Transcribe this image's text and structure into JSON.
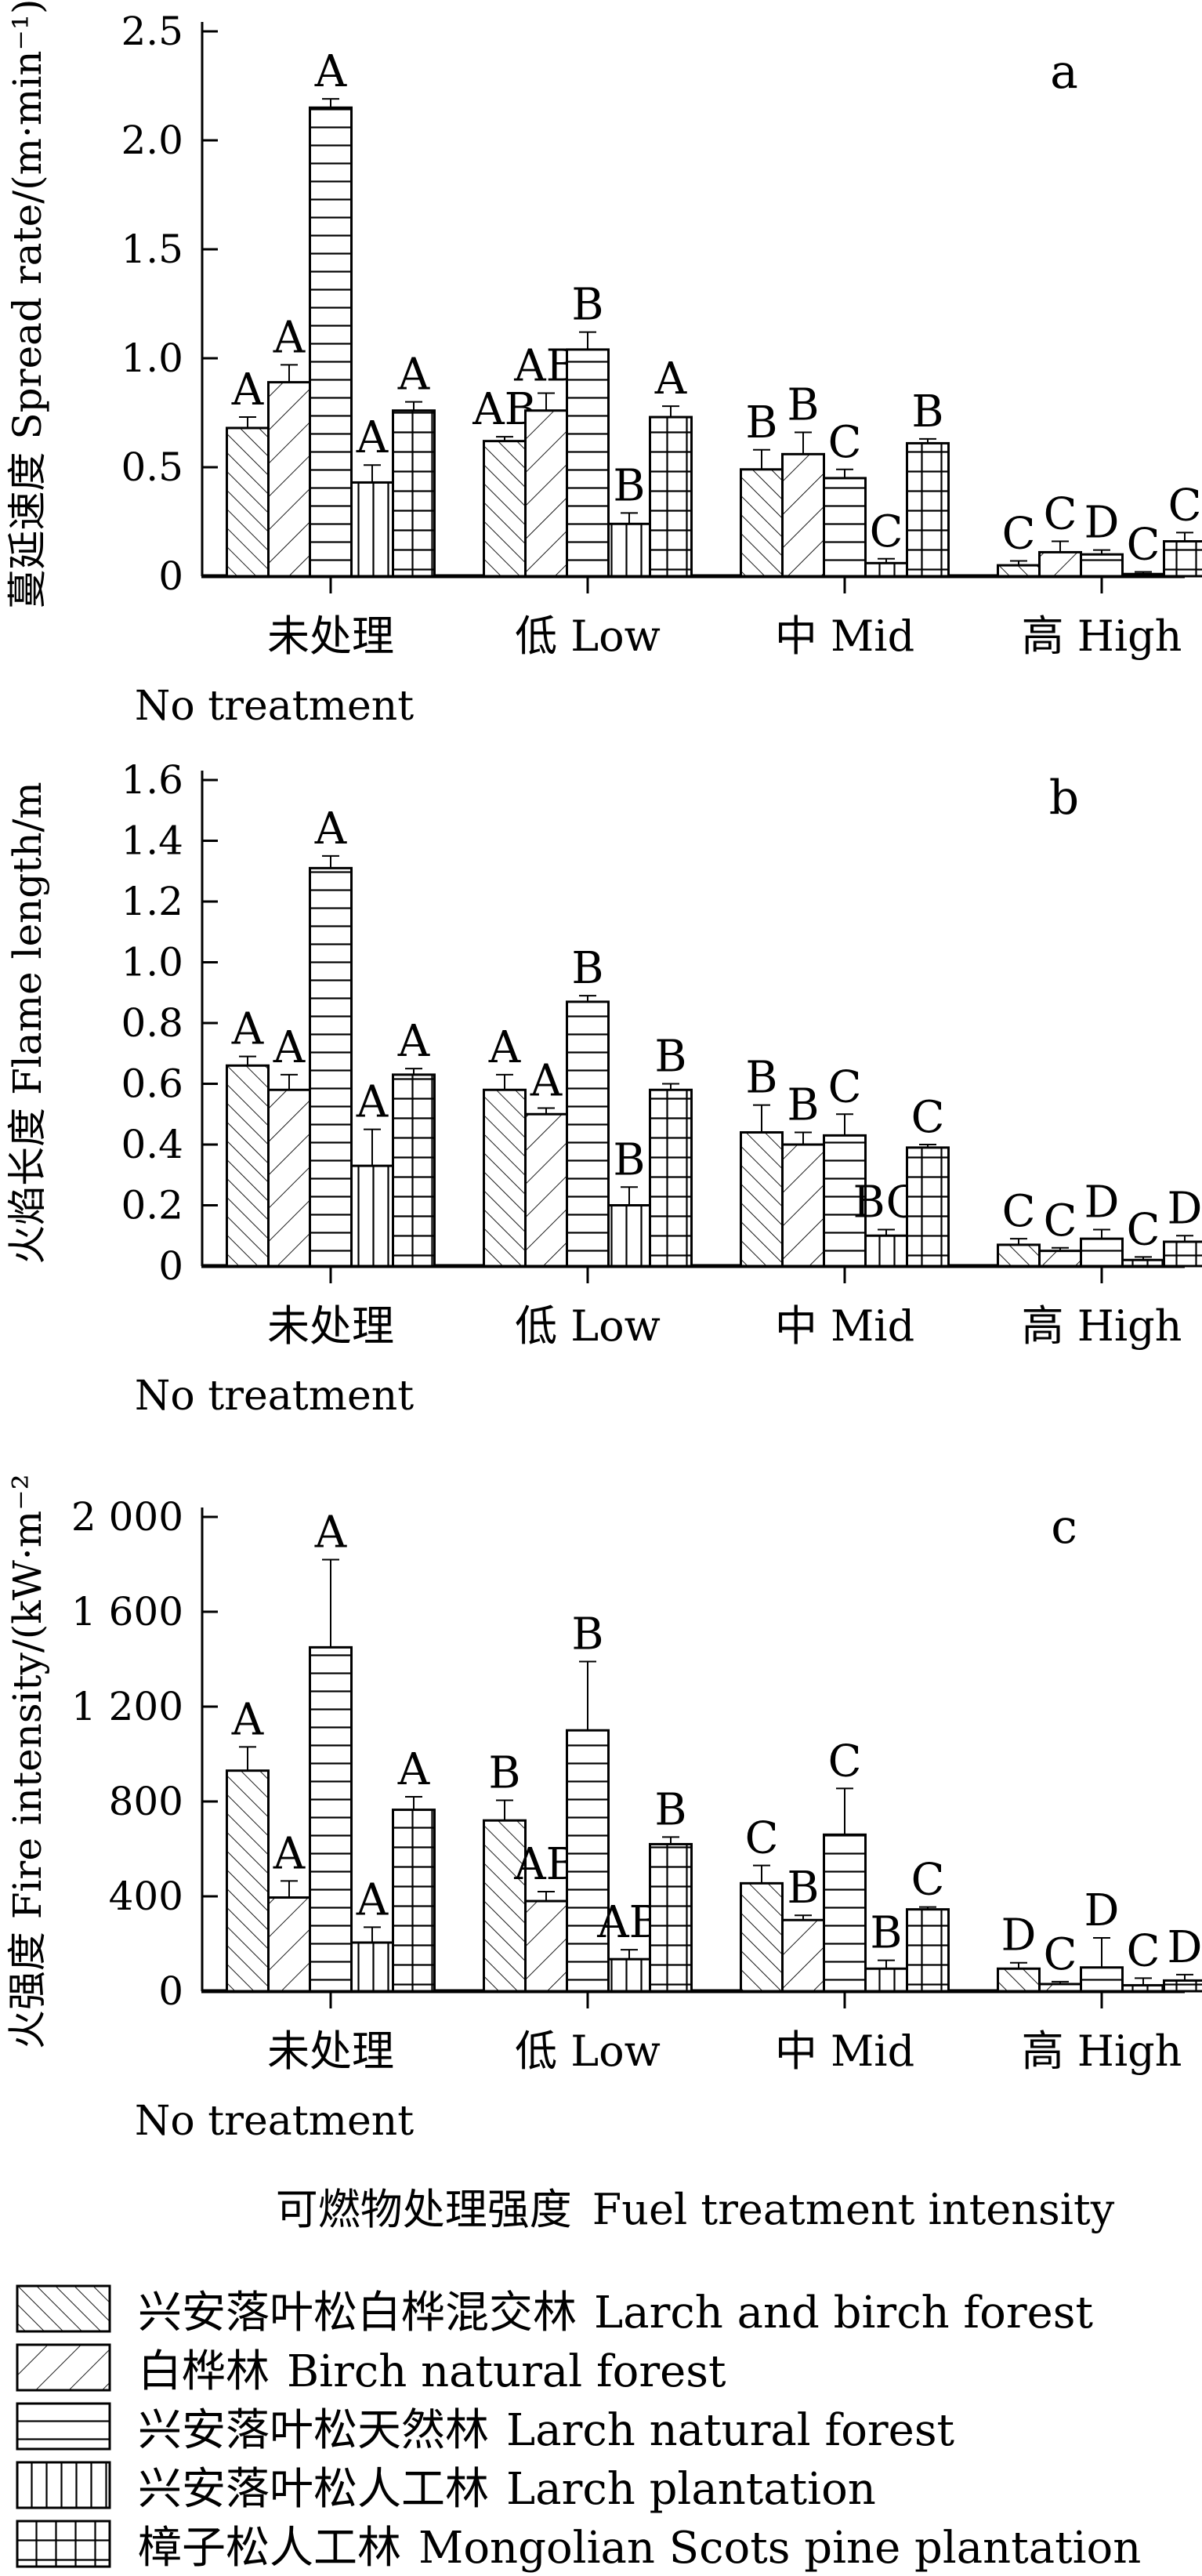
{
  "figure": {
    "x_axis_title_cn": "可燃物处理强度",
    "x_axis_title_en": "Fuel treatment intensity"
  },
  "legend": {
    "items": [
      {
        "cn": "兴安落叶松白桦混交林",
        "en": "Larch and birch forest",
        "pattern": "diag-up"
      },
      {
        "cn": "白桦林",
        "en": "Birch natural forest",
        "pattern": "diag-down"
      },
      {
        "cn": "兴安落叶松天然林",
        "en": "Larch natural forest",
        "pattern": "horiz"
      },
      {
        "cn": "兴安落叶松人工林",
        "en": "Larch plantation",
        "pattern": "vert"
      },
      {
        "cn": "樟子松人工林",
        "en": "Mongolian Scots pine plantation",
        "pattern": "grid"
      }
    ]
  },
  "chart_data": [
    {
      "type": "bar",
      "panel_label": "a",
      "ylabel_cn": "蔓延速度",
      "ylabel_en": "Spread rate/(m·min⁻¹)",
      "ylim": [
        0,
        2.5
      ],
      "ytick_labels": [
        "0",
        "0.5",
        "1.0",
        "1.5",
        "2.0",
        "2.5"
      ],
      "categories": [
        "未处理",
        "低 Low",
        "中 Mid",
        "高 High"
      ],
      "category_sublabels": [
        "No treatment",
        "",
        "",
        ""
      ],
      "legend_position": "below-figure",
      "grid": false,
      "series": [
        {
          "name": "Larch and birch forest",
          "pattern": "diag-up",
          "values": [
            0.68,
            0.62,
            0.49,
            0.05
          ],
          "errors": [
            0.05,
            0.02,
            0.09,
            0.02
          ],
          "letters": [
            "A",
            "AB",
            "B",
            "C"
          ]
        },
        {
          "name": "Birch natural forest",
          "pattern": "diag-down",
          "values": [
            0.89,
            0.76,
            0.56,
            0.11
          ],
          "errors": [
            0.08,
            0.08,
            0.1,
            0.05
          ],
          "letters": [
            "A",
            "AB",
            "B",
            "C"
          ]
        },
        {
          "name": "Larch natural forest",
          "pattern": "horiz",
          "values": [
            2.15,
            1.04,
            0.45,
            0.1
          ],
          "errors": [
            0.04,
            0.08,
            0.04,
            0.02
          ],
          "letters": [
            "A",
            "B",
            "C",
            "D"
          ]
        },
        {
          "name": "Larch plantation",
          "pattern": "vert",
          "values": [
            0.43,
            0.24,
            0.06,
            0.01
          ],
          "errors": [
            0.08,
            0.05,
            0.02,
            0.01
          ],
          "letters": [
            "A",
            "B",
            "C",
            "C"
          ]
        },
        {
          "name": "Mongolian Scots pine plantation",
          "pattern": "grid",
          "values": [
            0.76,
            0.73,
            0.61,
            0.16
          ],
          "errors": [
            0.04,
            0.05,
            0.02,
            0.04
          ],
          "letters": [
            "A",
            "A",
            "B",
            "C"
          ]
        }
      ]
    },
    {
      "type": "bar",
      "panel_label": "b",
      "ylabel_cn": "火焰长度",
      "ylabel_en": "Flame length/m",
      "ylim": [
        0,
        1.6
      ],
      "ytick_labels": [
        "0",
        "0.2",
        "0.4",
        "0.6",
        "0.8",
        "1.0",
        "1.2",
        "1.4",
        "1.6"
      ],
      "categories": [
        "未处理",
        "低 Low",
        "中 Mid",
        "高 High"
      ],
      "category_sublabels": [
        "No treatment",
        "",
        "",
        ""
      ],
      "legend_position": "below-figure",
      "grid": false,
      "series": [
        {
          "name": "Larch and birch forest",
          "pattern": "diag-up",
          "values": [
            0.66,
            0.58,
            0.44,
            0.07
          ],
          "errors": [
            0.03,
            0.05,
            0.09,
            0.02
          ],
          "letters": [
            "A",
            "A",
            "B",
            "C"
          ]
        },
        {
          "name": "Birch natural forest",
          "pattern": "diag-down",
          "values": [
            0.58,
            0.5,
            0.4,
            0.05
          ],
          "errors": [
            0.05,
            0.02,
            0.04,
            0.01
          ],
          "letters": [
            "A",
            "A",
            "B",
            "C"
          ]
        },
        {
          "name": "Larch natural forest",
          "pattern": "horiz",
          "values": [
            1.31,
            0.87,
            0.43,
            0.09
          ],
          "errors": [
            0.04,
            0.02,
            0.07,
            0.03
          ],
          "letters": [
            "A",
            "B",
            "C",
            "D"
          ]
        },
        {
          "name": "Larch plantation",
          "pattern": "vert",
          "values": [
            0.33,
            0.2,
            0.1,
            0.02
          ],
          "errors": [
            0.12,
            0.06,
            0.02,
            0.01
          ],
          "letters": [
            "A",
            "B",
            "BC",
            "C"
          ]
        },
        {
          "name": "Mongolian Scots pine plantation",
          "pattern": "grid",
          "values": [
            0.63,
            0.58,
            0.39,
            0.08
          ],
          "errors": [
            0.02,
            0.02,
            0.01,
            0.02
          ],
          "letters": [
            "A",
            "B",
            "C",
            "D"
          ]
        }
      ]
    },
    {
      "type": "bar",
      "panel_label": "c",
      "ylabel_cn": "火强度",
      "ylabel_en": "Fire intensity/(kW·m⁻²)",
      "ylim": [
        0,
        2000
      ],
      "ytick_labels": [
        "0",
        "400",
        "800",
        "1 200",
        "1 600",
        "2 000"
      ],
      "categories": [
        "未处理",
        "低 Low",
        "中 Mid",
        "高 High"
      ],
      "category_sublabels": [
        "No treatment",
        "",
        "",
        ""
      ],
      "legend_position": "below-figure",
      "grid": false,
      "series": [
        {
          "name": "Larch and birch forest",
          "pattern": "diag-up",
          "values": [
            930,
            720,
            455,
            95
          ],
          "errors": [
            100,
            85,
            75,
            25
          ],
          "letters": [
            "A",
            "B",
            "C",
            "D"
          ]
        },
        {
          "name": "Birch natural forest",
          "pattern": "diag-down",
          "values": [
            395,
            380,
            300,
            30
          ],
          "errors": [
            70,
            40,
            20,
            10
          ],
          "letters": [
            "A",
            "AB",
            "B",
            "C"
          ]
        },
        {
          "name": "Larch natural forest",
          "pattern": "horiz",
          "values": [
            1450,
            1100,
            660,
            100
          ],
          "errors": [
            370,
            290,
            195,
            125
          ],
          "letters": [
            "A",
            "B",
            "C",
            "D"
          ]
        },
        {
          "name": "Larch plantation",
          "pattern": "vert",
          "values": [
            205,
            135,
            95,
            25
          ],
          "errors": [
            65,
            40,
            35,
            30
          ],
          "letters": [
            "A",
            "AB",
            "B",
            "C"
          ]
        },
        {
          "name": "Mongolian Scots pine plantation",
          "pattern": "grid",
          "values": [
            765,
            620,
            345,
            45
          ],
          "errors": [
            55,
            30,
            10,
            25
          ],
          "letters": [
            "A",
            "B",
            "C",
            "D"
          ]
        }
      ]
    }
  ]
}
